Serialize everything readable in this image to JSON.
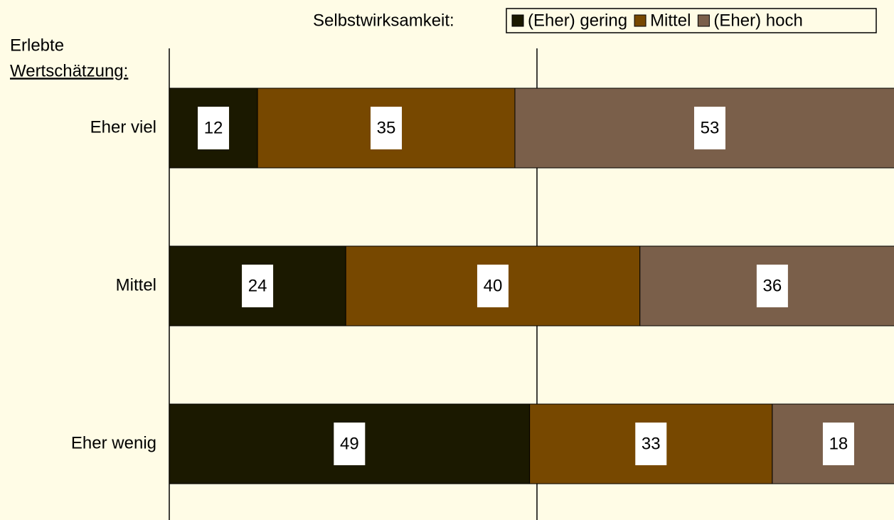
{
  "chart_data": {
    "type": "stacked_barh",
    "legend_title": "Selbstwirksamkeit:",
    "y_label_lines": [
      "Erlebte",
      "Wertschätzung:"
    ],
    "categories": [
      "Eher viel",
      "Mittel",
      "Eher wenig"
    ],
    "series": [
      {
        "name": "(Eher) gering",
        "color": "#1b1900",
        "values": [
          12,
          24,
          49
        ]
      },
      {
        "name": "Mittel",
        "color": "#774800",
        "values": [
          35,
          40,
          33
        ]
      },
      {
        "name": "(Eher) hoch",
        "color": "#7a5f4a",
        "values": [
          53,
          36,
          18
        ]
      }
    ],
    "xlim": [
      0,
      100
    ],
    "xticks": [
      0,
      50,
      100
    ],
    "grid": true,
    "legend": "top-right"
  }
}
